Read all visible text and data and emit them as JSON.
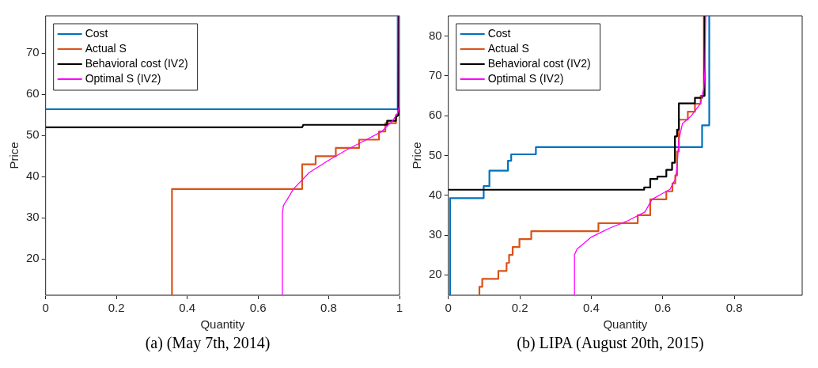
{
  "chart_data": [
    {
      "type": "line",
      "title": "(a) (May 7th, 2014)",
      "xlabel": "Quantity",
      "ylabel": "Price",
      "xlim": [
        0,
        1
      ],
      "ylim": [
        11.2,
        79.1
      ],
      "xticks": [
        0,
        0.2,
        0.4,
        0.6,
        0.8,
        1
      ],
      "yticks": [
        20,
        30,
        40,
        50,
        60,
        70
      ],
      "grid": false,
      "legend": "top left",
      "marker": "none",
      "line_style": "solid",
      "series": [
        {
          "name": "Cost",
          "color": "#0072bd",
          "x": [
            0,
            0.995,
            0.995
          ],
          "values": [
            56.4,
            56.4,
            79.1
          ]
        },
        {
          "name": "Actual S",
          "color": "#d95319",
          "x": [
            0.357,
            0.357,
            0.725,
            0.725,
            0.763,
            0.763,
            0.82,
            0.82,
            0.886,
            0.886,
            0.942,
            0.942,
            0.96,
            0.96,
            0.99,
            0.99,
            0.997,
            0.997
          ],
          "values": [
            11.2,
            37,
            37,
            43,
            43,
            45,
            45,
            47,
            47,
            49,
            49,
            51,
            51,
            53,
            53,
            55,
            55,
            79.1
          ]
        },
        {
          "name": "Behavioral cost (IV2)",
          "color": "#000000",
          "x": [
            0,
            0.725,
            0.728,
            0.965,
            0.965,
            0.99,
            0.99,
            0.997,
            0.998
          ],
          "values": [
            52,
            52,
            52.6,
            52.6,
            53.6,
            53.6,
            54.5,
            55,
            79.1
          ]
        },
        {
          "name": "Optimal S (IV2)",
          "color": "#ff00ff",
          "x": [
            0.668,
            0.669,
            0.672,
            0.69,
            0.7,
            0.745,
            0.8,
            0.85,
            0.9,
            0.95,
            0.98,
            0.995,
            0.999,
            0.999
          ],
          "values": [
            11.2,
            31,
            33,
            35.5,
            37,
            41,
            44,
            46.5,
            48.7,
            51,
            53.5,
            55.5,
            57,
            79.1
          ]
        }
      ]
    },
    {
      "type": "line",
      "title": "(b) LIPA (August 20th, 2015)",
      "xlabel": "Quantity",
      "ylabel": "Price",
      "xlim": [
        0,
        0.99
      ],
      "ylim": [
        14.9,
        85.1
      ],
      "xticks": [
        0,
        0.2,
        0.4,
        0.6,
        0.8
      ],
      "yticks": [
        20,
        30,
        40,
        50,
        60,
        70,
        80
      ],
      "grid": false,
      "legend": "top left",
      "marker": "none",
      "line_style": "solid",
      "series": [
        {
          "name": "Cost",
          "color": "#0072bd",
          "x": [
            0.005,
            0.005,
            0.099,
            0.099,
            0.115,
            0.115,
            0.167,
            0.167,
            0.176,
            0.176,
            0.245,
            0.245,
            0.71,
            0.71,
            0.73,
            0.73
          ],
          "values": [
            14.9,
            39.3,
            39.3,
            42.3,
            42.3,
            46.2,
            46.2,
            48.7,
            48.7,
            50.3,
            50.3,
            52.1,
            52.1,
            57.6,
            57.6,
            85.1
          ]
        },
        {
          "name": "Actual S",
          "color": "#d95319",
          "x": [
            0.087,
            0.087,
            0.095,
            0.095,
            0.14,
            0.14,
            0.163,
            0.163,
            0.17,
            0.17,
            0.18,
            0.18,
            0.199,
            0.199,
            0.232,
            0.232,
            0.42,
            0.42,
            0.53,
            0.53,
            0.565,
            0.565,
            0.61,
            0.61,
            0.627,
            0.627,
            0.635,
            0.635,
            0.64,
            0.64,
            0.645,
            0.645,
            0.67,
            0.67,
            0.69,
            0.69,
            0.706,
            0.706,
            0.715,
            0.715
          ],
          "values": [
            14.9,
            17,
            17,
            19,
            19,
            21,
            21,
            23,
            23,
            25,
            25,
            27,
            27,
            29,
            29,
            31,
            31,
            33,
            33,
            35,
            35,
            39,
            39,
            41,
            41,
            43,
            43,
            45,
            45,
            51,
            51,
            59,
            59,
            61,
            61,
            63,
            63,
            65,
            65,
            85.1
          ]
        },
        {
          "name": "Behavioral cost (IV2)",
          "color": "#000000",
          "x": [
            0,
            0.548,
            0.548,
            0.565,
            0.565,
            0.585,
            0.585,
            0.61,
            0.61,
            0.626,
            0.626,
            0.634,
            0.634,
            0.64,
            0.64,
            0.645,
            0.645,
            0.69,
            0.69,
            0.71,
            0.71,
            0.717,
            0.717
          ],
          "values": [
            41.4,
            41.4,
            42,
            42,
            44.1,
            44.1,
            44.7,
            44.7,
            46.4,
            46.4,
            48.2,
            48.2,
            54.8,
            54.8,
            56.5,
            56.5,
            63.1,
            63.1,
            64.5,
            64.5,
            65,
            65,
            85.1
          ]
        },
        {
          "name": "Optimal S (IV2)",
          "color": "#ff00ff",
          "x": [
            0.353,
            0.353,
            0.36,
            0.38,
            0.4,
            0.45,
            0.5,
            0.55,
            0.57,
            0.6,
            0.62,
            0.635,
            0.64,
            0.645,
            0.655,
            0.68,
            0.705,
            0.715,
            0.718,
            0.72
          ],
          "values": [
            14.9,
            25,
            26.5,
            28,
            29.5,
            31.7,
            33.5,
            35.8,
            39,
            40.5,
            41.5,
            44,
            47,
            54,
            58,
            60,
            63,
            67,
            72,
            85.1
          ]
        }
      ]
    }
  ]
}
